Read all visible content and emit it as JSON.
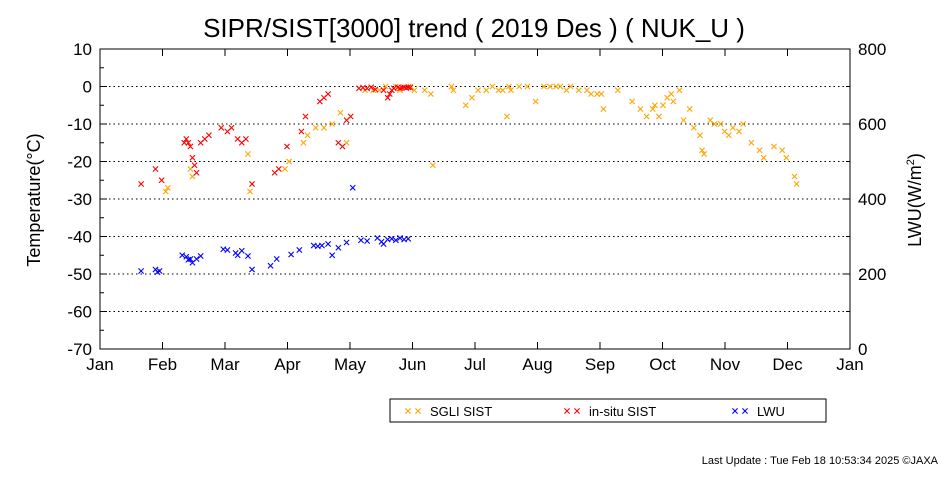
{
  "chart_data": {
    "type": "scatter",
    "title": "SIPR/SIST[3000] trend ( 2019 Des ) ( NUK_U )",
    "ylabel": "Temperature(°C)",
    "y2label_main": "LWU(W/m",
    "y2label_sup": "2",
    "y2label_end": ")",
    "ylim": [
      -70,
      10
    ],
    "y2lim": [
      0,
      800
    ],
    "yticks": [
      "10",
      "0",
      "-10",
      "-20",
      "-30",
      "-40",
      "-50",
      "-60",
      "-70"
    ],
    "y2ticks": [
      "800",
      "600",
      "400",
      "200",
      "0"
    ],
    "xticks": [
      "Jan",
      "Feb",
      "Mar",
      "Apr",
      "May",
      "Jun",
      "Jul",
      "Aug",
      "Sep",
      "Oct",
      "Nov",
      "Dec",
      "Jan"
    ],
    "grid": "dotted horizontal",
    "legend_position": "bottom",
    "series": [
      {
        "name": "SGLI SIST",
        "color": "#ffa500",
        "axis": "left",
        "points": [
          [
            "2019-02-02",
            -28
          ],
          [
            "2019-02-03",
            -27
          ],
          [
            "2019-02-14",
            -22
          ],
          [
            "2019-02-15",
            -24
          ],
          [
            "2019-03-14",
            -18
          ],
          [
            "2019-03-15",
            -28
          ],
          [
            "2019-04-01",
            -22
          ],
          [
            "2019-04-03",
            -20
          ],
          [
            "2019-04-10",
            -15
          ],
          [
            "2019-04-12",
            -13
          ],
          [
            "2019-04-16",
            -11
          ],
          [
            "2019-04-20",
            -11
          ],
          [
            "2019-04-24",
            -10
          ],
          [
            "2019-04-28",
            -7
          ],
          [
            "2019-05-01",
            -15
          ],
          [
            "2019-05-10",
            -1
          ],
          [
            "2019-05-14",
            -1
          ],
          [
            "2019-05-17",
            -1
          ],
          [
            "2019-05-20",
            0
          ],
          [
            "2019-05-25",
            0
          ],
          [
            "2019-05-27",
            -1
          ],
          [
            "2019-06-01",
            0
          ],
          [
            "2019-06-03",
            -1
          ],
          [
            "2019-06-08",
            -1
          ],
          [
            "2019-06-11",
            -2
          ],
          [
            "2019-06-12",
            -21
          ],
          [
            "2019-06-21",
            0
          ],
          [
            "2019-06-22",
            -1
          ],
          [
            "2019-06-28",
            -5
          ],
          [
            "2019-07-01",
            -3
          ],
          [
            "2019-07-04",
            -1
          ],
          [
            "2019-07-08",
            -1
          ],
          [
            "2019-07-11",
            0
          ],
          [
            "2019-07-14",
            -1
          ],
          [
            "2019-07-16",
            -1
          ],
          [
            "2019-07-18",
            -8
          ],
          [
            "2019-07-19",
            0
          ],
          [
            "2019-07-20",
            -1
          ],
          [
            "2019-07-24",
            0
          ],
          [
            "2019-07-28",
            0
          ],
          [
            "2019-08-01",
            -4
          ],
          [
            "2019-08-05",
            0
          ],
          [
            "2019-08-08",
            0
          ],
          [
            "2019-08-11",
            0
          ],
          [
            "2019-08-13",
            0
          ],
          [
            "2019-08-16",
            -1
          ],
          [
            "2019-08-18",
            0
          ],
          [
            "2019-08-22",
            -1
          ],
          [
            "2019-08-26",
            -1
          ],
          [
            "2019-08-28",
            -2
          ],
          [
            "2019-08-31",
            -2
          ],
          [
            "2019-09-02",
            -2
          ],
          [
            "2019-09-03",
            -6
          ],
          [
            "2019-09-10",
            -1
          ],
          [
            "2019-09-17",
            -4
          ],
          [
            "2019-09-21",
            -6
          ],
          [
            "2019-09-24",
            -8
          ],
          [
            "2019-09-27",
            -6
          ],
          [
            "2019-09-28",
            -5
          ],
          [
            "2019-09-30",
            -8
          ],
          [
            "2019-10-02",
            -5
          ],
          [
            "2019-10-04",
            -3
          ],
          [
            "2019-10-06",
            -2
          ],
          [
            "2019-10-07",
            -4
          ],
          [
            "2019-10-10",
            -1
          ],
          [
            "2019-10-12",
            -9
          ],
          [
            "2019-10-15",
            -6
          ],
          [
            "2019-10-17",
            -11
          ],
          [
            "2019-10-20",
            -13
          ],
          [
            "2019-10-21",
            -17
          ],
          [
            "2019-10-22",
            -18
          ],
          [
            "2019-10-25",
            -9
          ],
          [
            "2019-10-27",
            -10
          ],
          [
            "2019-10-30",
            -10
          ],
          [
            "2019-11-01",
            -12
          ],
          [
            "2019-11-03",
            -13
          ],
          [
            "2019-11-05",
            -11
          ],
          [
            "2019-11-08",
            -12
          ],
          [
            "2019-11-10",
            -10
          ],
          [
            "2019-11-14",
            -15
          ],
          [
            "2019-11-18",
            -17
          ],
          [
            "2019-11-20",
            -19
          ],
          [
            "2019-11-25",
            -16
          ],
          [
            "2019-11-29",
            -17
          ],
          [
            "2019-12-01",
            -19
          ],
          [
            "2019-12-05",
            -24
          ],
          [
            "2019-12-06",
            -26
          ]
        ]
      },
      {
        "name": "in-situ SIST",
        "color": "#ff0000",
        "axis": "left",
        "points": [
          [
            "2019-01-21",
            -26
          ],
          [
            "2019-01-28",
            -22
          ],
          [
            "2019-01-31",
            -25
          ],
          [
            "2019-02-11",
            -15
          ],
          [
            "2019-02-12",
            -14
          ],
          [
            "2019-02-13",
            -15
          ],
          [
            "2019-02-14",
            -16
          ],
          [
            "2019-02-15",
            -19
          ],
          [
            "2019-02-16",
            -21
          ],
          [
            "2019-02-17",
            -23
          ],
          [
            "2019-02-19",
            -15
          ],
          [
            "2019-02-21",
            -14
          ],
          [
            "2019-02-23",
            -13
          ],
          [
            "2019-03-01",
            -11
          ],
          [
            "2019-03-04",
            -12
          ],
          [
            "2019-03-06",
            -11
          ],
          [
            "2019-03-09",
            -14
          ],
          [
            "2019-03-11",
            -15
          ],
          [
            "2019-03-13",
            -14
          ],
          [
            "2019-03-16",
            -26
          ],
          [
            "2019-03-27",
            -23
          ],
          [
            "2019-03-29",
            -22
          ],
          [
            "2019-04-02",
            -16
          ],
          [
            "2019-04-09",
            -12
          ],
          [
            "2019-04-11",
            -8
          ],
          [
            "2019-04-18",
            -4
          ],
          [
            "2019-04-20",
            -3
          ],
          [
            "2019-04-22",
            -2
          ],
          [
            "2019-04-27",
            -15
          ],
          [
            "2019-04-29",
            -16
          ],
          [
            "2019-05-01",
            -9
          ],
          [
            "2019-05-03",
            -8
          ],
          [
            "2019-05-07",
            -0.5
          ],
          [
            "2019-05-09",
            -0.3
          ],
          [
            "2019-05-11",
            -0.5
          ],
          [
            "2019-05-13",
            -0.2
          ],
          [
            "2019-05-15",
            -0.8
          ],
          [
            "2019-05-19",
            -1
          ],
          [
            "2019-05-21",
            -3
          ],
          [
            "2019-05-22",
            -2
          ],
          [
            "2019-05-23",
            -1
          ],
          [
            "2019-05-24",
            -0.5
          ],
          [
            "2019-05-26",
            -0.2
          ],
          [
            "2019-05-27",
            -0.5
          ],
          [
            "2019-05-28",
            -0.3
          ],
          [
            "2019-05-29",
            -0.2
          ],
          [
            "2019-05-30",
            -0.4
          ],
          [
            "2019-05-31",
            -0.2
          ],
          [
            "2019-06-01",
            -0.3
          ]
        ]
      },
      {
        "name": "LWU",
        "color": "#0000ff",
        "axis": "right",
        "points": [
          [
            "2019-01-21",
            208
          ],
          [
            "2019-01-28",
            212
          ],
          [
            "2019-01-29",
            205
          ],
          [
            "2019-01-30",
            208
          ],
          [
            "2019-02-10",
            250
          ],
          [
            "2019-02-12",
            246
          ],
          [
            "2019-02-13",
            238
          ],
          [
            "2019-02-14",
            240
          ],
          [
            "2019-02-15",
            230
          ],
          [
            "2019-02-17",
            240
          ],
          [
            "2019-02-19",
            248
          ],
          [
            "2019-03-02",
            266
          ],
          [
            "2019-03-04",
            264
          ],
          [
            "2019-03-08",
            256
          ],
          [
            "2019-03-09",
            250
          ],
          [
            "2019-03-11",
            262
          ],
          [
            "2019-03-14",
            248
          ],
          [
            "2019-03-16",
            212
          ],
          [
            "2019-03-25",
            222
          ],
          [
            "2019-03-28",
            240
          ],
          [
            "2019-04-04",
            252
          ],
          [
            "2019-04-08",
            264
          ],
          [
            "2019-04-15",
            276
          ],
          [
            "2019-04-17",
            274
          ],
          [
            "2019-04-19",
            276
          ],
          [
            "2019-04-22",
            280
          ],
          [
            "2019-04-24",
            250
          ],
          [
            "2019-04-27",
            270
          ],
          [
            "2019-05-01",
            284
          ],
          [
            "2019-05-04",
            430
          ],
          [
            "2019-05-08",
            290
          ],
          [
            "2019-05-11",
            288
          ],
          [
            "2019-05-16",
            296
          ],
          [
            "2019-05-18",
            286
          ],
          [
            "2019-05-19",
            280
          ],
          [
            "2019-05-21",
            292
          ],
          [
            "2019-05-23",
            294
          ],
          [
            "2019-05-25",
            290
          ],
          [
            "2019-05-27",
            296
          ],
          [
            "2019-05-29",
            292
          ],
          [
            "2019-05-31",
            294
          ]
        ]
      }
    ]
  },
  "footer": {
    "last_update": "Last Update : Tue Feb 18 10:53:34 2025  ©JAXA"
  }
}
